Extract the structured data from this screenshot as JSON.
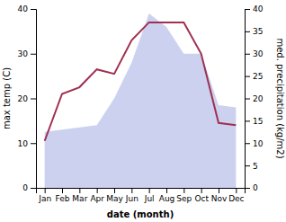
{
  "chart_data": {
    "type": "line",
    "xlabel": "date (month)",
    "ylabel": "max temp (C)",
    "y2label": "med. precipitation (kg/m2)",
    "categories": [
      "Jan",
      "Feb",
      "Mar",
      "Apr",
      "May",
      "Jun",
      "Jul",
      "Aug",
      "Sep",
      "Oct",
      "Nov",
      "Dec"
    ],
    "series": [
      {
        "type": "line",
        "color": "#a03050",
        "values": [
          10.5,
          21.0,
          22.5,
          26.5,
          25.5,
          33.0,
          37.0,
          37.0,
          37.0,
          30.0,
          14.5,
          14.0
        ]
      },
      {
        "type": "area",
        "color": "#b0b8e8",
        "axis": "y2",
        "values": [
          12.5,
          13.0,
          13.5,
          14.0,
          20.0,
          28.0,
          39.0,
          36.0,
          30.0,
          30.0,
          18.5,
          18.0
        ]
      }
    ],
    "ylim": [
      0,
      40
    ],
    "yticks": [
      0,
      10,
      20,
      30,
      40
    ],
    "y2lim": [
      0,
      40
    ],
    "y2ticks": [
      0,
      5,
      10,
      15,
      20,
      25,
      30,
      35,
      40
    ],
    "grid": false
  }
}
